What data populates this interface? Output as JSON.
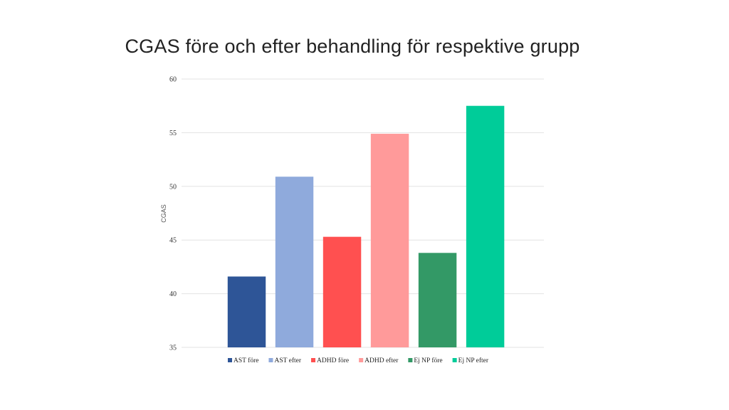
{
  "chart_data": {
    "type": "bar",
    "title": "CGAS före och efter behandling för respektive grupp",
    "ylabel": "CGAS",
    "xlabel": "",
    "ylim": [
      35,
      60
    ],
    "yticks": [
      35,
      40,
      45,
      50,
      55,
      60
    ],
    "grid": true,
    "legend_position": "bottom",
    "categories": [
      "AST före",
      "AST efter",
      "ADHD före",
      "ADHD efter",
      "Ej NP före",
      "Ej NP efter"
    ],
    "values": [
      41.6,
      50.9,
      45.3,
      54.9,
      43.8,
      57.5
    ],
    "colors": [
      "#2e5597",
      "#8faadc",
      "#ff5050",
      "#ff9a9a",
      "#339966",
      "#00cc99"
    ]
  }
}
